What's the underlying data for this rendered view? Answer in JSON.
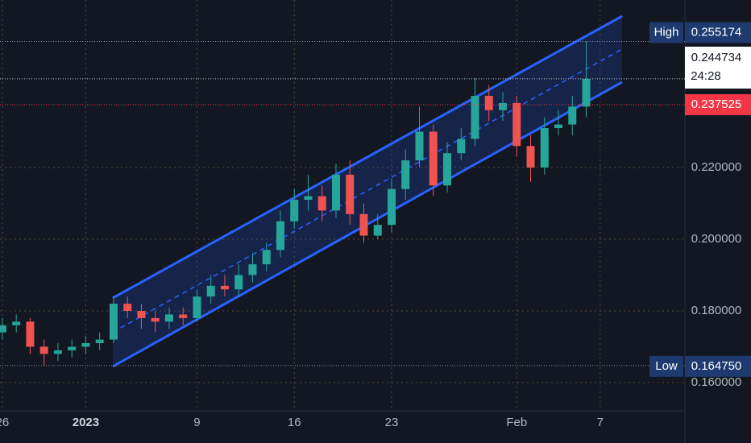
{
  "chart_data": {
    "type": "candlestick",
    "x": [
      0,
      1,
      2,
      3,
      4,
      5,
      6,
      7,
      8,
      9,
      10,
      11,
      12,
      13,
      14,
      15,
      16,
      17,
      18,
      19,
      20,
      21,
      22,
      23,
      24,
      25,
      26,
      27,
      28,
      29,
      30,
      31,
      32,
      33,
      34,
      35,
      36,
      37,
      38,
      39,
      40,
      41,
      42
    ],
    "open": [
      0.174,
      0.176,
      0.177,
      0.17,
      0.168,
      0.169,
      0.17,
      0.171,
      0.172,
      0.182,
      0.18,
      0.178,
      0.177,
      0.179,
      0.178,
      0.184,
      0.187,
      0.186,
      0.19,
      0.193,
      0.197,
      0.205,
      0.211,
      0.212,
      0.208,
      0.218,
      0.207,
      0.201,
      0.204,
      0.214,
      0.222,
      0.23,
      0.215,
      0.224,
      0.228,
      0.24,
      0.236,
      0.238,
      0.226,
      0.22,
      0.231,
      0.232,
      0.237
    ],
    "high": [
      0.178,
      0.179,
      0.178,
      0.172,
      0.171,
      0.172,
      0.173,
      0.174,
      0.184,
      0.184,
      0.182,
      0.18,
      0.181,
      0.181,
      0.186,
      0.19,
      0.19,
      0.193,
      0.196,
      0.199,
      0.208,
      0.214,
      0.218,
      0.215,
      0.221,
      0.222,
      0.21,
      0.207,
      0.217,
      0.225,
      0.237,
      0.232,
      0.227,
      0.231,
      0.245,
      0.243,
      0.241,
      0.24,
      0.229,
      0.234,
      0.236,
      0.24,
      0.2552
    ],
    "low": [
      0.172,
      0.174,
      0.168,
      0.1648,
      0.166,
      0.167,
      0.168,
      0.169,
      0.171,
      0.178,
      0.175,
      0.174,
      0.175,
      0.176,
      0.177,
      0.182,
      0.184,
      0.184,
      0.188,
      0.191,
      0.195,
      0.203,
      0.208,
      0.205,
      0.206,
      0.204,
      0.199,
      0.2,
      0.202,
      0.211,
      0.22,
      0.212,
      0.213,
      0.222,
      0.226,
      0.233,
      0.233,
      0.223,
      0.216,
      0.218,
      0.229,
      0.229,
      0.234
    ],
    "close": [
      0.176,
      0.177,
      0.17,
      0.168,
      0.169,
      0.17,
      0.171,
      0.172,
      0.182,
      0.18,
      0.178,
      0.177,
      0.179,
      0.178,
      0.184,
      0.187,
      0.186,
      0.19,
      0.193,
      0.197,
      0.205,
      0.211,
      0.212,
      0.208,
      0.218,
      0.207,
      0.201,
      0.204,
      0.214,
      0.222,
      0.23,
      0.215,
      0.224,
      0.228,
      0.24,
      0.236,
      0.238,
      0.226,
      0.22,
      0.231,
      0.232,
      0.237,
      0.2447
    ],
    "up_color": "#26a69a",
    "down_color": "#ef5350",
    "channel": {
      "x": [
        7.94,
        44.58
      ],
      "upper": [
        0.1836,
        0.26225
      ],
      "middle": [
        0.17405,
        0.25304
      ],
      "lower": [
        0.16449,
        0.24382
      ],
      "color": "#2962ff"
    },
    "xlim": [
      -0.17,
      49.1
    ],
    "xticks": [
      {
        "value": 0,
        "label": "26"
      },
      {
        "value": 6,
        "label": "2023"
      },
      {
        "value": 14,
        "label": "9"
      },
      {
        "value": 21,
        "label": "16"
      },
      {
        "value": 28,
        "label": "23"
      },
      {
        "value": 37,
        "label": "Feb"
      },
      {
        "value": 43,
        "label": "7"
      }
    ],
    "ylim": [
      0.15213,
      0.26674
    ],
    "yticks": [
      {
        "value": 0.16,
        "label": "0.160000"
      },
      {
        "value": 0.18,
        "label": "0.180000"
      },
      {
        "value": 0.2,
        "label": "0.200000"
      },
      {
        "value": 0.22,
        "label": "0.220000"
      }
    ],
    "grid": true,
    "price_labels": [
      {
        "name": "High",
        "value": 0.255174
      },
      {
        "value": 0.244734,
        "countdown": "24:28"
      },
      {
        "value": 0.237525
      },
      {
        "name": "Low",
        "value": 0.16475,
        "label": "0.164750"
      }
    ]
  }
}
